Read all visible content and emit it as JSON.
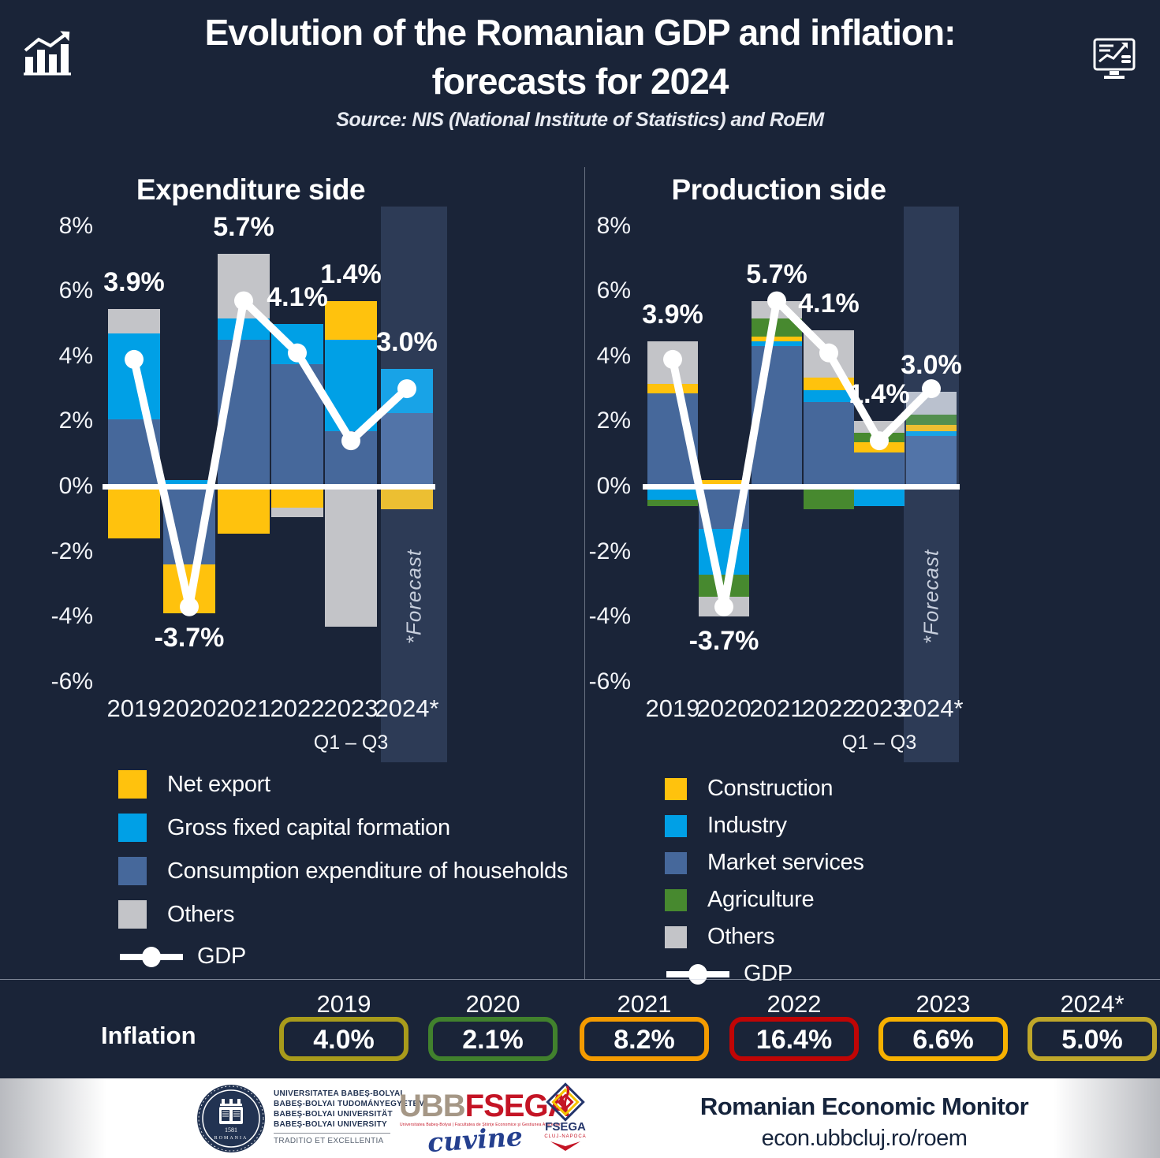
{
  "header": {
    "title_line1": "Evolution of the Romanian GDP and inflation:",
    "title_line2": "forecasts for 2024",
    "subtitle": "Source: NIS (National Institute of Statistics) and RoEM"
  },
  "colors": {
    "background": "#1A2438",
    "text": "#FFFFFF",
    "yellow": "#FFC20D",
    "light_blue": "#00A0E6",
    "steel_blue": "#46689B",
    "gray": "#C3C4C8",
    "green": "#47892F",
    "gdp_line": "#FFFFFF"
  },
  "chart_data": [
    {
      "id": "expenditure",
      "type": "bar",
      "subtype": "stacked-bar-with-line",
      "title": "Expenditure side",
      "categories": [
        "2019",
        "2020",
        "2021",
        "2022",
        "2023",
        "2024*"
      ],
      "category_note": {
        "index": 4,
        "label": "Q1 – Q3"
      },
      "axis_ticks": [
        {
          "label": "8%",
          "value": 8
        },
        {
          "label": "6%",
          "value": 6
        },
        {
          "label": "4%",
          "value": 4
        },
        {
          "label": "2%",
          "value": 2
        },
        {
          "label": "0%",
          "value": 0
        },
        {
          "label": "-2%",
          "value": -2
        },
        {
          "label": "-4%",
          "value": -4
        },
        {
          "label": "-6%",
          "value": -6
        }
      ],
      "ylim": [
        -7,
        8.6
      ],
      "grid": false,
      "series": [
        {
          "name": "Consumption expenditure of households",
          "color": "#46689B",
          "values": [
            2.05,
            -2.4,
            4.5,
            3.75,
            1.7,
            2.25
          ]
        },
        {
          "name": "Gross fixed capital formation",
          "color": "#00A0E6",
          "values": [
            2.65,
            0.2,
            0.65,
            1.25,
            2.8,
            1.35
          ]
        },
        {
          "name": "Net export",
          "color": "#FFC20D",
          "values": [
            -1.6,
            -1.5,
            -1.45,
            -0.65,
            1.2,
            -0.7
          ]
        },
        {
          "name": "Others",
          "color": "#C3C4C8",
          "values": [
            0.75,
            0,
            2.0,
            -0.3,
            -4.3,
            0
          ]
        }
      ],
      "gdp_line": {
        "label": "GDP",
        "color": "#FFFFFF",
        "values": [
          3.9,
          -3.7,
          5.7,
          4.1,
          1.4,
          3.0
        ],
        "value_labels": [
          "3.9%",
          "-3.7%",
          "5.7%",
          "4.1%",
          "1.4%",
          "3.0%"
        ]
      },
      "forecast": {
        "column_index": 5,
        "label": "*Forecast"
      },
      "legend": [
        {
          "label": "Net export",
          "color": "#FFC20D"
        },
        {
          "label": "Gross fixed capital formation",
          "color": "#00A0E6"
        },
        {
          "label": "Consumption expenditure of households",
          "color": "#46689B"
        },
        {
          "label": "Others",
          "color": "#C3C4C8"
        }
      ],
      "legend_line_label": "GDP"
    },
    {
      "id": "production",
      "type": "bar",
      "subtype": "stacked-bar-with-line",
      "title": "Production side",
      "categories": [
        "2019",
        "2020",
        "2021",
        "2022",
        "2023",
        "2024*"
      ],
      "category_note": {
        "index": 4,
        "label": "Q1 – Q3"
      },
      "axis_ticks": [
        {
          "label": "8%",
          "value": 8
        },
        {
          "label": "6%",
          "value": 6
        },
        {
          "label": "4%",
          "value": 4
        },
        {
          "label": "2%",
          "value": 2
        },
        {
          "label": "0%",
          "value": 0
        },
        {
          "label": "-2%",
          "value": -2
        },
        {
          "label": "-4%",
          "value": -4
        },
        {
          "label": "-6%",
          "value": -6
        }
      ],
      "ylim": [
        -7,
        8.6
      ],
      "grid": false,
      "series": [
        {
          "name": "Market services",
          "color": "#46689B",
          "values": [
            2.85,
            -1.3,
            4.3,
            2.6,
            1.05,
            1.55
          ]
        },
        {
          "name": "Industry",
          "color": "#00A0E6",
          "values": [
            -0.4,
            -1.4,
            0.15,
            0.35,
            -0.6,
            0.15
          ]
        },
        {
          "name": "Construction",
          "color": "#FFC20D",
          "values": [
            0.3,
            0.2,
            0.15,
            0.4,
            0.3,
            0.2
          ]
        },
        {
          "name": "Agriculture",
          "color": "#47892F",
          "values": [
            -0.2,
            -0.7,
            0.55,
            -0.7,
            0.3,
            0.3
          ]
        },
        {
          "name": "Others",
          "color": "#C3C4C8",
          "values": [
            1.3,
            -0.6,
            0.55,
            1.45,
            0.35,
            0.7
          ]
        }
      ],
      "gdp_line": {
        "label": "GDP",
        "color": "#FFFFFF",
        "values": [
          3.9,
          -3.7,
          5.7,
          4.1,
          1.4,
          3.0
        ],
        "value_labels": [
          "3.9%",
          "-3.7%",
          "5.7%",
          "4.1%",
          "1.4%",
          "3.0%"
        ]
      },
      "forecast": {
        "column_index": 5,
        "label": "*Forecast"
      },
      "legend": [
        {
          "label": "Construction",
          "color": "#FFC20D"
        },
        {
          "label": "Industry",
          "color": "#00A0E6"
        },
        {
          "label": "Market services",
          "color": "#46689B"
        },
        {
          "label": "Agriculture",
          "color": "#47892F"
        },
        {
          "label": "Others",
          "color": "#C3C4C8"
        }
      ],
      "legend_line_label": "GDP"
    }
  ],
  "inflation": {
    "label": "Inflation",
    "items": [
      {
        "year": "2019",
        "value": "4.0%",
        "color": "#A89B1B"
      },
      {
        "year": "2020",
        "value": "2.1%",
        "color": "#41812D"
      },
      {
        "year": "2021",
        "value": "8.2%",
        "color": "#F49B00"
      },
      {
        "year": "2022",
        "value": "16.4%",
        "color": "#C00505"
      },
      {
        "year": "2023",
        "value": "6.6%",
        "color": "#F7B100"
      },
      {
        "year": "2024*",
        "value": "5.0%",
        "color": "#BFA72A"
      }
    ]
  },
  "footer": {
    "university_lines": [
      "UNIVERSITATEA BABEŞ-BOLYAI",
      "BABEŞ-BOLYAI TUDOMÁNYEGYETEM",
      "BABEŞ-BOLYAI UNIVERSITÄT",
      "BABEŞ-BOLYAI UNIVERSITY"
    ],
    "university_motto": "TRADITIO ET EXCELLENTIA",
    "ubb_logo_prefix": "UBB",
    "ubb_logo_suffix": "FSEGA",
    "ubb_logo_prefix_color": "#A59786",
    "ubb_logo_suffix_color": "#C41425",
    "ubb_logo_subtext": "Universitatea Babeş-Bolyai | Facultatea de Ştiinţe Economice şi Gestiunea Afacerilor",
    "ubb_script": "cuvine",
    "emblem_text": "FSEGA",
    "emblem_subtext": "CLUJ-NAPOCA",
    "monitor_title": "Romanian Economic Monitor",
    "monitor_url": "econ.ubbcluj.ro/roem"
  }
}
